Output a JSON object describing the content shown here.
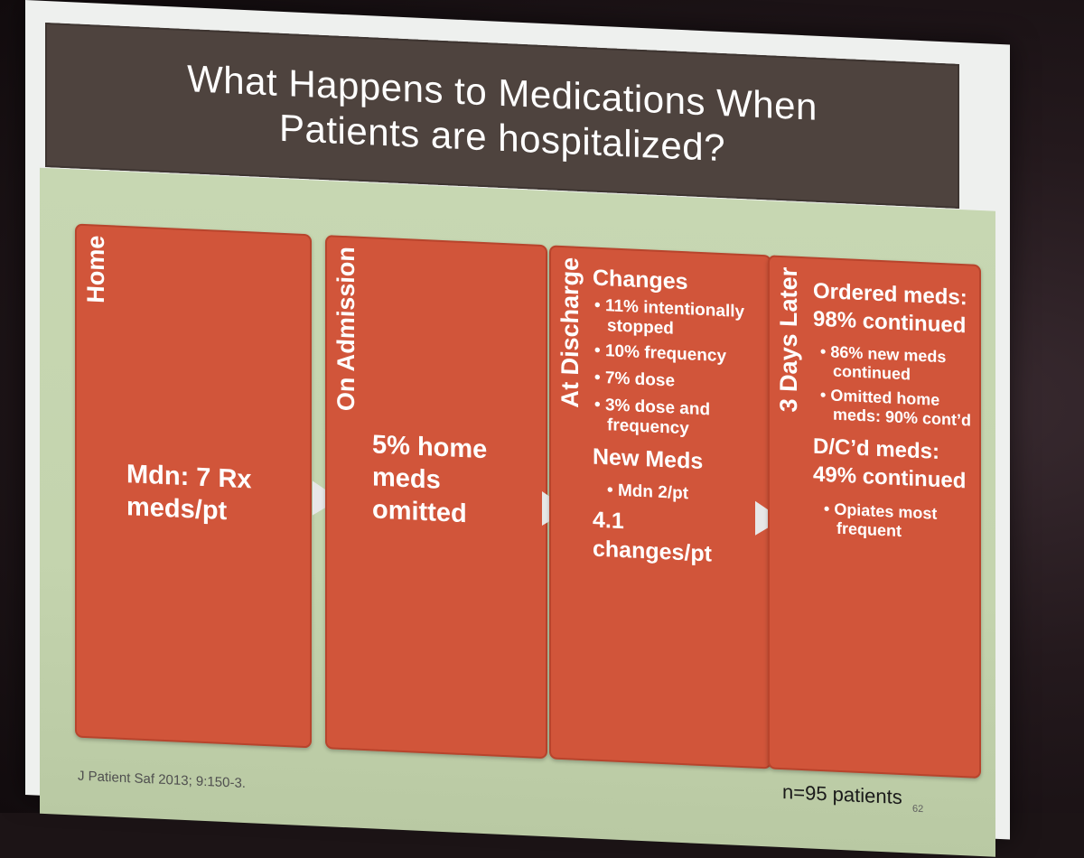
{
  "title_line1": "What Happens to Medications When",
  "title_line2": "Patients are hospitalized?",
  "home": {
    "label": "Home",
    "text": "Mdn: 7 Rx meds/pt"
  },
  "admission": {
    "label": "On Admission",
    "text": "5% home meds omitted"
  },
  "discharge": {
    "label": "At Discharge",
    "changes_heading": "Changes",
    "changes": [
      "11% intentionally stopped",
      "10% frequency",
      "7% dose",
      "3% dose and frequency"
    ],
    "new_heading": "New Meds",
    "new_items": [
      "Mdn 2/pt"
    ],
    "total": "4.1 changes/pt"
  },
  "later": {
    "label": "3 Days Later",
    "ordered": "Ordered meds: 98% continued",
    "ordered_items": [
      "86% new meds continued",
      "Omitted home meds: 90% cont’d"
    ],
    "dc": "D/C’d meds: 49% continued",
    "dc_items": [
      "Opiates most frequent"
    ]
  },
  "n_patients": "n=95 patients",
  "citation": "J Patient Saf 2013; 9:150-3.",
  "slide_number": "62",
  "colors": {
    "box": "#d1553a",
    "title_bar": "#4e433e",
    "background": "#c7d7b2",
    "arrow": "#e7e7e7"
  }
}
